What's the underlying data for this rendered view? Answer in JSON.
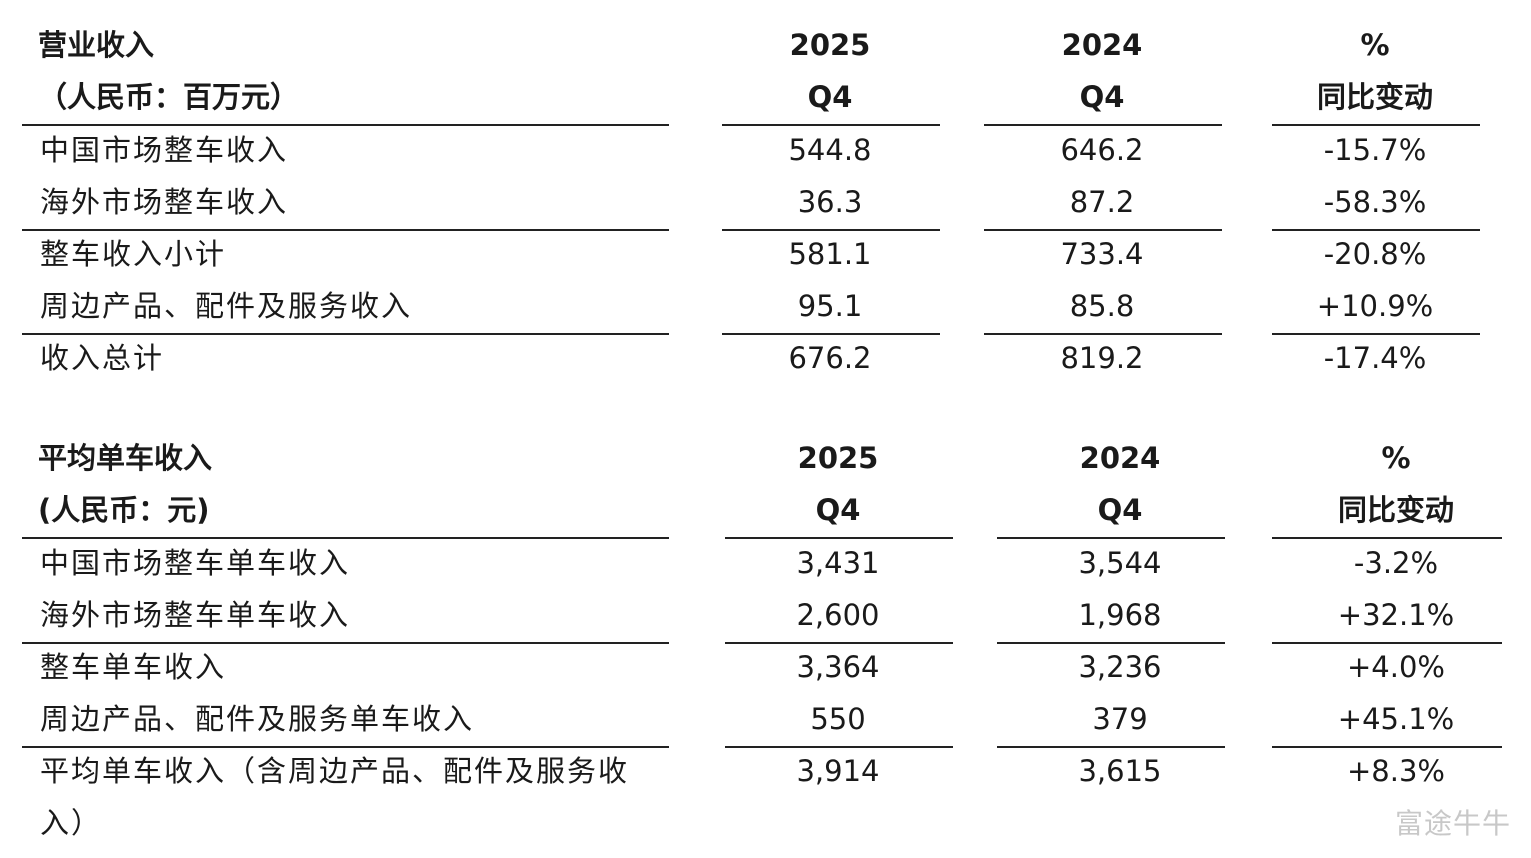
{
  "tables": [
    {
      "header": [
        [
          "营业收入",
          "2025",
          "2024",
          "%"
        ],
        [
          "（人民币：百万元）",
          "Q4",
          "Q4",
          "同比变动"
        ]
      ],
      "rows": [
        [
          "中国市场整车收入",
          "544.8",
          "646.2",
          "-15.7%"
        ],
        [
          "海外市场整车收入",
          "36.3",
          "87.2",
          "-58.3%"
        ],
        [
          "整车收入小计",
          "581.1",
          "733.4",
          "-20.8%"
        ],
        [
          "周边产品、配件及服务收入",
          "95.1",
          "85.8",
          "+10.9%"
        ],
        [
          "收入总计",
          "676.2",
          "819.2",
          "-17.4%"
        ]
      ]
    },
    {
      "header": [
        [
          "平均单车收入",
          "2025",
          "2024",
          "%"
        ],
        [
          "(人民币：元)",
          "Q4",
          "Q4",
          "同比变动"
        ]
      ],
      "rows": [
        [
          "中国市场整车单车收入",
          "3,431",
          "3,544",
          "-3.2%"
        ],
        [
          "海外市场整车单车收入",
          "2,600",
          "1,968",
          "+32.1%"
        ],
        [
          "整车单车收入",
          "3,364",
          "3,236",
          "+4.0%"
        ],
        [
          "周边产品、配件及服务单车收入",
          "550",
          "379",
          "+45.1%"
        ],
        [
          "平均单车收入（含周边产品、配件及服务收入）",
          "3,914",
          "3,615",
          "+8.3%"
        ]
      ]
    }
  ],
  "watermark": "富途牛牛"
}
